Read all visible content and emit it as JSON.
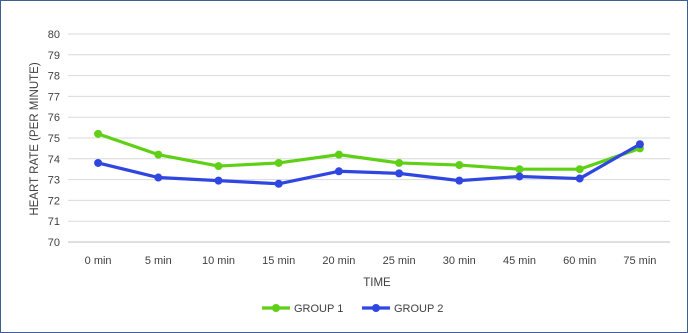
{
  "chart_data": {
    "type": "line",
    "title": "",
    "xlabel": "TIME",
    "ylabel": "HEART RATE (PER MINUTE)",
    "categories": [
      "0 min",
      "5 min",
      "10 min",
      "15 min",
      "20 min",
      "25 min",
      "30 min",
      "45 min",
      "60 min",
      "75 min"
    ],
    "ylim": [
      70,
      80
    ],
    "yticks": [
      "70",
      "71",
      "72",
      "73",
      "74",
      "75",
      "76",
      "77",
      "78",
      "79",
      "80"
    ],
    "grid": true,
    "legend_position": "bottom",
    "series": [
      {
        "name": "GROUP 1",
        "color": "#5fd016",
        "values": [
          75.2,
          74.2,
          73.65,
          73.8,
          74.2,
          73.8,
          73.7,
          73.5,
          73.5,
          74.5
        ]
      },
      {
        "name": "GROUP 2",
        "color": "#2f47e0",
        "values": [
          73.8,
          73.1,
          72.95,
          72.8,
          73.4,
          73.3,
          72.95,
          73.15,
          73.05,
          74.7
        ]
      }
    ]
  }
}
